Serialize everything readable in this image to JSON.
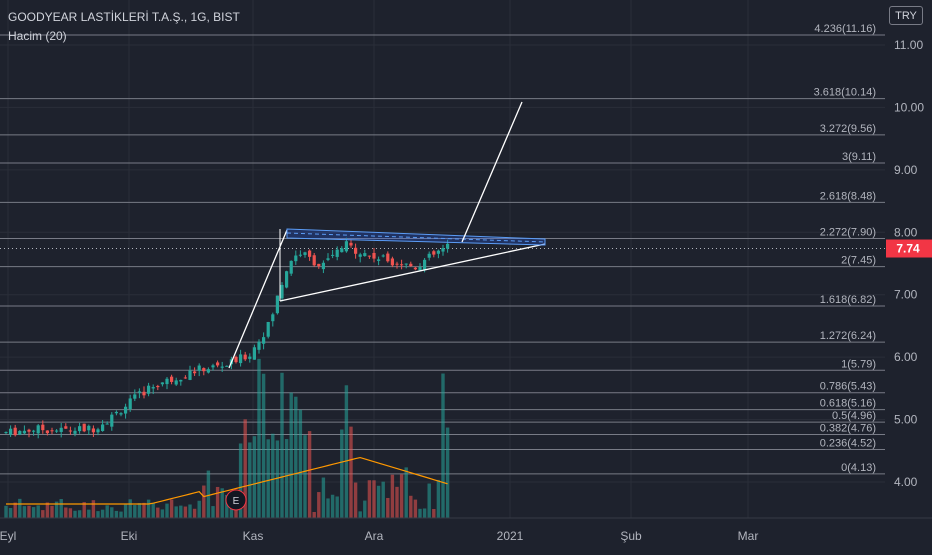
{
  "header": {
    "symbol": "GOODYEAR LASTİKLERİ T.A.Ş., 1G, BIST",
    "indicator": "Hacim (20)"
  },
  "currency_button": "TRY",
  "earnings_marker": "E",
  "colors": {
    "background": "#1e222d",
    "up": "#26a69a",
    "down": "#ef5350",
    "price_label": "#f23645",
    "fib_line": "#787b86",
    "triangle": "#ffffff",
    "flag_band": "#2962ff",
    "volume_ma": "#ff9800"
  },
  "chart_data": {
    "type": "candlestick",
    "title": "GOODYEAR LASTİKLERİ T.A.Ş., 1G, BIST",
    "y_axis": {
      "ticks": [
        "4.00",
        "5.00",
        "6.00",
        "7.00",
        "8.00",
        "9.00",
        "10.00",
        "11.00"
      ],
      "range": [
        3.5,
        11.5
      ]
    },
    "x_axis": {
      "labels": [
        "Eyl",
        "Eki",
        "Kas",
        "Ara",
        "2021",
        "Şub",
        "Mar"
      ]
    },
    "last_price": "7.74",
    "fib_levels": [
      {
        "label": "4.236(11.16)",
        "value": 11.16
      },
      {
        "label": "3.618(10.14)",
        "value": 10.14
      },
      {
        "label": "3.272(9.56)",
        "value": 9.56
      },
      {
        "label": "3(9.11)",
        "value": 9.11
      },
      {
        "label": "2.618(8.48)",
        "value": 8.48
      },
      {
        "label": "2.272(7.90)",
        "value": 7.9
      },
      {
        "label": "2(7.45)",
        "value": 7.45
      },
      {
        "label": "1.618(6.82)",
        "value": 6.82
      },
      {
        "label": "1.272(6.24)",
        "value": 6.24
      },
      {
        "label": "1(5.79)",
        "value": 5.79
      },
      {
        "label": "0.786(5.43)",
        "value": 5.43
      },
      {
        "label": "0.618(5.16)",
        "value": 5.16
      },
      {
        "label": "0.5(4.96)",
        "value": 4.96
      },
      {
        "label": "0.382(4.76)",
        "value": 4.76
      },
      {
        "label": "0.236(4.52)",
        "value": 4.52
      },
      {
        "label": "0(4.13)",
        "value": 4.13
      }
    ],
    "volume_series": "Hacim (20)"
  }
}
